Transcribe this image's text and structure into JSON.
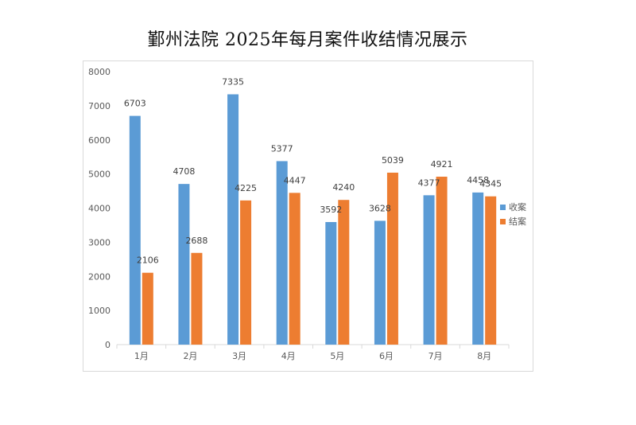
{
  "chart_data": {
    "type": "bar",
    "title": "鄞州法院 2025年每月案件收结情况展示",
    "xlabel": "",
    "ylabel": "",
    "categories": [
      "1月",
      "2月",
      "3月",
      "4月",
      "5月",
      "6月",
      "7月",
      "8月"
    ],
    "series": [
      {
        "name": "收案",
        "color": "#5b9bd5",
        "values": [
          6703,
          4708,
          7335,
          5377,
          3592,
          3628,
          4377,
          4458
        ]
      },
      {
        "name": "结案",
        "color": "#ed7d31",
        "values": [
          2106,
          2688,
          4225,
          4447,
          4240,
          5039,
          4921,
          4345
        ]
      }
    ],
    "ylim": [
      0,
      8000
    ],
    "yticks": [
      "0",
      "1000",
      "2000",
      "3000",
      "4000",
      "5000",
      "6000",
      "7000",
      "8000"
    ],
    "grid": false,
    "legend_position": "right",
    "data_labels": true
  }
}
